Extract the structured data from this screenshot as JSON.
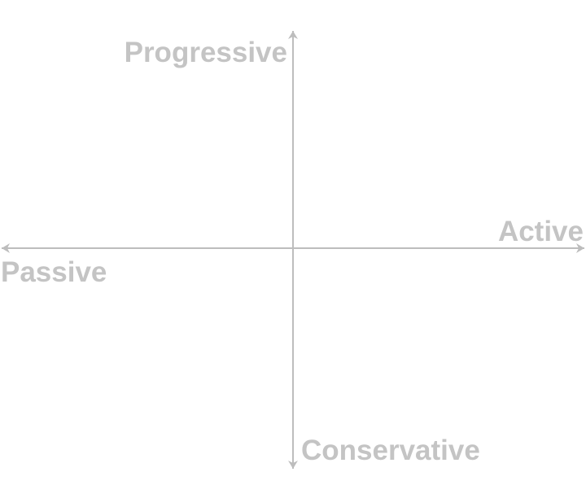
{
  "diagram": {
    "type": "quadrant-axes",
    "axis_color": "#bdbdbd",
    "label_color": "#c4c4c4",
    "vertical_axis": {
      "top_label": "Progressive",
      "bottom_label": "Conservative"
    },
    "horizontal_axis": {
      "right_label": "Active",
      "left_label": "Passive"
    }
  }
}
